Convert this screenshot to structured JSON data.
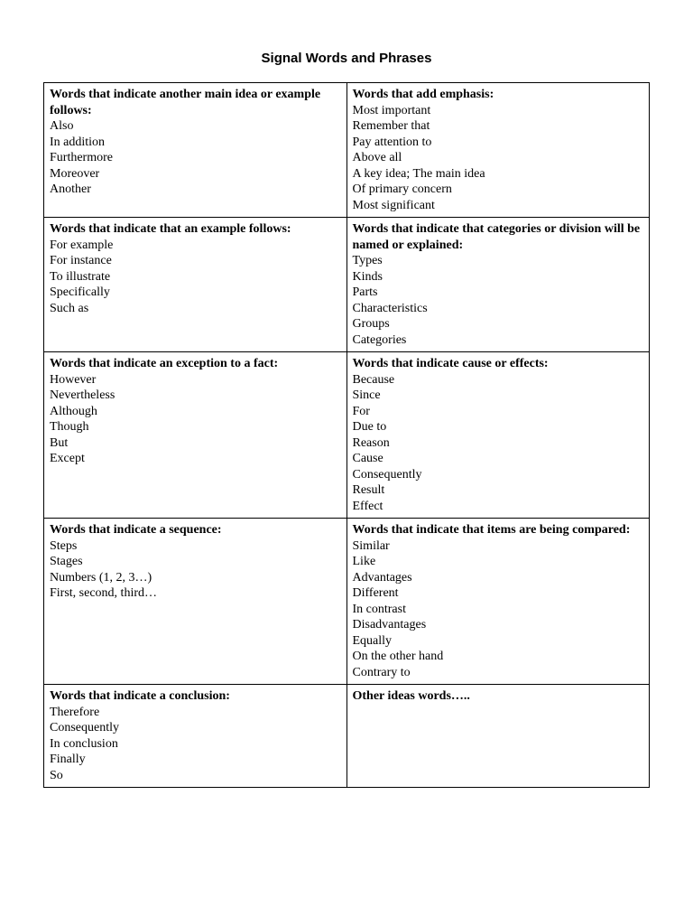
{
  "title": "Signal Words and Phrases",
  "cells": [
    [
      {
        "heading": "Words that indicate another main idea or example follows:",
        "items": [
          "Also",
          "In addition",
          "Furthermore",
          "Moreover",
          "Another"
        ]
      },
      {
        "heading": "Words that add emphasis:",
        "items": [
          "Most important",
          "Remember that",
          "Pay attention to",
          "Above all",
          "A key idea; The main idea",
          "Of primary concern",
          "Most significant"
        ]
      }
    ],
    [
      {
        "heading": "Words that indicate that an example follows:",
        "items": [
          "For example",
          "For instance",
          "To illustrate",
          "Specifically",
          "Such as"
        ]
      },
      {
        "heading": "Words that indicate that categories or division will be named or explained:",
        "items": [
          "Types",
          "Kinds",
          "Parts",
          "Characteristics",
          "Groups",
          "Categories"
        ]
      }
    ],
    [
      {
        "heading": "Words that indicate an exception to a fact:",
        "items": [
          "However",
          "Nevertheless",
          "Although",
          "Though",
          "But",
          "Except"
        ]
      },
      {
        "heading": "Words that indicate cause or effects:",
        "items": [
          "Because",
          "Since",
          "For",
          "Due to",
          "Reason",
          "Cause",
          "Consequently",
          "Result",
          "Effect"
        ]
      }
    ],
    [
      {
        "heading": "Words that indicate a sequence:",
        "items": [
          "Steps",
          "Stages",
          "Numbers (1, 2, 3…)",
          "First, second, third…"
        ]
      },
      {
        "heading": "Words that indicate that items are being compared:",
        "items": [
          "Similar",
          "Like",
          "Advantages",
          "Different",
          "In contrast",
          "Disadvantages",
          "Equally",
          "On the other hand",
          "Contrary to"
        ]
      }
    ],
    [
      {
        "heading": "Words that indicate a conclusion:",
        "items": [
          "Therefore",
          "Consequently",
          "In conclusion",
          "Finally",
          "So"
        ]
      },
      {
        "heading": "Other ideas words…..",
        "items": []
      }
    ]
  ]
}
